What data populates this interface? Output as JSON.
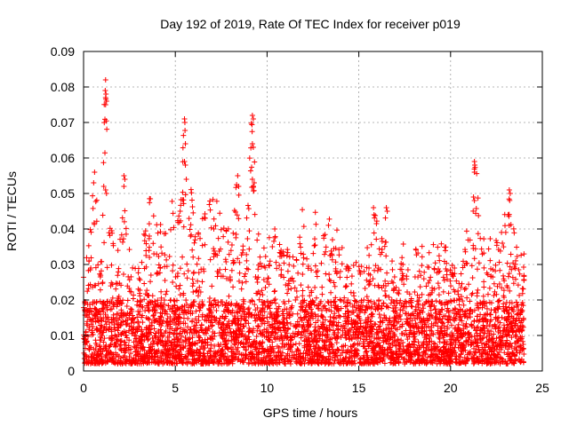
{
  "chart_data": {
    "type": "scatter",
    "title": "Day 192 of 2019, Rate Of TEC Index for receiver p019",
    "xlabel": "GPS time / hours",
    "ylabel": "ROTI / TECUs",
    "xlim": [
      0,
      25
    ],
    "ylim": [
      0,
      0.09
    ],
    "xticks": [
      0,
      5,
      10,
      15,
      20,
      25
    ],
    "yticks": [
      0,
      0.01,
      0.02,
      0.03,
      0.04,
      0.05,
      0.06,
      0.07,
      0.08,
      0.09
    ],
    "xtick_labels": [
      "0",
      "5",
      "10",
      "15",
      "20",
      "25"
    ],
    "ytick_labels": [
      "0",
      "0.01",
      "0.02",
      "0.03",
      "0.04",
      "0.05",
      "0.06",
      "0.07",
      "0.08",
      "0.09"
    ],
    "grid": true,
    "marker": "+",
    "color": "#ff0000",
    "data_x_range": [
      0,
      24
    ],
    "envelope": [
      {
        "x": 0.0,
        "y": 0.027
      },
      {
        "x": 0.3,
        "y": 0.04
      },
      {
        "x": 0.6,
        "y": 0.056
      },
      {
        "x": 0.9,
        "y": 0.042
      },
      {
        "x": 1.2,
        "y": 0.082
      },
      {
        "x": 1.5,
        "y": 0.04
      },
      {
        "x": 1.9,
        "y": 0.037
      },
      {
        "x": 2.2,
        "y": 0.055
      },
      {
        "x": 2.6,
        "y": 0.032
      },
      {
        "x": 3.0,
        "y": 0.03
      },
      {
        "x": 3.4,
        "y": 0.042
      },
      {
        "x": 3.7,
        "y": 0.049
      },
      {
        "x": 4.1,
        "y": 0.044
      },
      {
        "x": 4.5,
        "y": 0.04
      },
      {
        "x": 4.8,
        "y": 0.049
      },
      {
        "x": 5.2,
        "y": 0.046
      },
      {
        "x": 5.5,
        "y": 0.071
      },
      {
        "x": 5.9,
        "y": 0.05
      },
      {
        "x": 6.2,
        "y": 0.039
      },
      {
        "x": 6.6,
        "y": 0.046
      },
      {
        "x": 7.0,
        "y": 0.05
      },
      {
        "x": 7.3,
        "y": 0.048
      },
      {
        "x": 7.7,
        "y": 0.04
      },
      {
        "x": 8.1,
        "y": 0.043
      },
      {
        "x": 8.4,
        "y": 0.055
      },
      {
        "x": 8.8,
        "y": 0.043
      },
      {
        "x": 9.2,
        "y": 0.072
      },
      {
        "x": 9.6,
        "y": 0.035
      },
      {
        "x": 10.0,
        "y": 0.037
      },
      {
        "x": 10.4,
        "y": 0.04
      },
      {
        "x": 10.8,
        "y": 0.038
      },
      {
        "x": 11.2,
        "y": 0.035
      },
      {
        "x": 11.5,
        "y": 0.033
      },
      {
        "x": 11.9,
        "y": 0.049
      },
      {
        "x": 12.3,
        "y": 0.032
      },
      {
        "x": 12.7,
        "y": 0.045
      },
      {
        "x": 13.1,
        "y": 0.039
      },
      {
        "x": 13.5,
        "y": 0.043
      },
      {
        "x": 13.9,
        "y": 0.04
      },
      {
        "x": 14.3,
        "y": 0.033
      },
      {
        "x": 14.7,
        "y": 0.034
      },
      {
        "x": 15.1,
        "y": 0.03
      },
      {
        "x": 15.5,
        "y": 0.035
      },
      {
        "x": 15.9,
        "y": 0.046
      },
      {
        "x": 16.2,
        "y": 0.04
      },
      {
        "x": 16.5,
        "y": 0.046
      },
      {
        "x": 16.9,
        "y": 0.034
      },
      {
        "x": 17.3,
        "y": 0.038
      },
      {
        "x": 17.7,
        "y": 0.032
      },
      {
        "x": 18.1,
        "y": 0.036
      },
      {
        "x": 18.5,
        "y": 0.04
      },
      {
        "x": 18.9,
        "y": 0.035
      },
      {
        "x": 19.3,
        "y": 0.038
      },
      {
        "x": 19.7,
        "y": 0.039
      },
      {
        "x": 20.1,
        "y": 0.03
      },
      {
        "x": 20.5,
        "y": 0.028
      },
      {
        "x": 20.9,
        "y": 0.042
      },
      {
        "x": 21.3,
        "y": 0.059
      },
      {
        "x": 21.7,
        "y": 0.041
      },
      {
        "x": 22.1,
        "y": 0.04
      },
      {
        "x": 22.5,
        "y": 0.038
      },
      {
        "x": 22.9,
        "y": 0.046
      },
      {
        "x": 23.2,
        "y": 0.051
      },
      {
        "x": 23.6,
        "y": 0.038
      },
      {
        "x": 24.0,
        "y": 0.033
      }
    ],
    "outliers": [
      {
        "x": 0.55,
        "y": 0.053
      },
      {
        "x": 0.6,
        "y": 0.056
      },
      {
        "x": 1.2,
        "y": 0.082
      },
      {
        "x": 1.18,
        "y": 0.079
      },
      {
        "x": 1.22,
        "y": 0.078
      },
      {
        "x": 1.2,
        "y": 0.077
      },
      {
        "x": 1.25,
        "y": 0.076
      },
      {
        "x": 1.2,
        "y": 0.075
      },
      {
        "x": 1.1,
        "y": 0.052
      },
      {
        "x": 1.2,
        "y": 0.051
      },
      {
        "x": 1.25,
        "y": 0.05
      },
      {
        "x": 2.2,
        "y": 0.055
      },
      {
        "x": 2.25,
        "y": 0.054
      },
      {
        "x": 2.2,
        "y": 0.052
      },
      {
        "x": 5.5,
        "y": 0.071
      },
      {
        "x": 5.52,
        "y": 0.07
      },
      {
        "x": 5.55,
        "y": 0.064
      },
      {
        "x": 5.5,
        "y": 0.059
      },
      {
        "x": 5.55,
        "y": 0.058
      },
      {
        "x": 5.6,
        "y": 0.054
      },
      {
        "x": 8.4,
        "y": 0.055
      },
      {
        "x": 8.45,
        "y": 0.052
      },
      {
        "x": 9.2,
        "y": 0.072
      },
      {
        "x": 9.25,
        "y": 0.071
      },
      {
        "x": 9.2,
        "y": 0.064
      },
      {
        "x": 9.25,
        "y": 0.063
      },
      {
        "x": 9.2,
        "y": 0.054
      },
      {
        "x": 9.3,
        "y": 0.053
      },
      {
        "x": 9.25,
        "y": 0.052
      },
      {
        "x": 15.8,
        "y": 0.046
      },
      {
        "x": 16.5,
        "y": 0.046
      },
      {
        "x": 16.55,
        "y": 0.045
      },
      {
        "x": 21.3,
        "y": 0.059
      },
      {
        "x": 21.32,
        "y": 0.058
      },
      {
        "x": 21.3,
        "y": 0.056
      },
      {
        "x": 21.25,
        "y": 0.049
      },
      {
        "x": 21.3,
        "y": 0.048
      },
      {
        "x": 23.2,
        "y": 0.051
      },
      {
        "x": 23.25,
        "y": 0.05
      }
    ],
    "baseline_min": 0.002,
    "dense_band_top": 0.02
  }
}
